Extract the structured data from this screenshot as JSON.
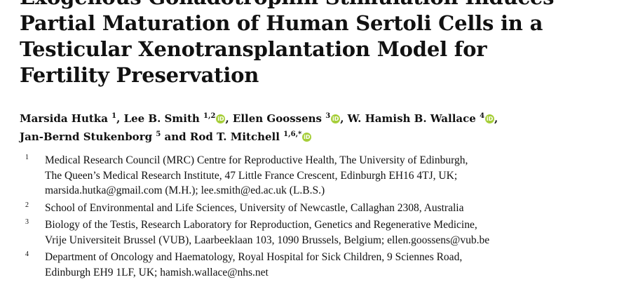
{
  "title_lines": [
    "Exogenous Gonadotrophin Stimulation Induces",
    "Partial Maturation of Human Sertoli Cells in a",
    "Testicular Xenotransplantation Model for",
    "Fertility Preservation"
  ],
  "authors": [
    {
      "name": "Marsida Hutka",
      "sup": "1",
      "orcid": false,
      "sep": ", "
    },
    {
      "name": "Lee B. Smith",
      "sup": "1,2",
      "orcid": true,
      "sep": ", "
    },
    {
      "name": "Ellen Goossens",
      "sup": "3",
      "orcid": true,
      "sep": ", "
    },
    {
      "name": "W. Hamish B. Wallace",
      "sup": "4",
      "orcid": true,
      "sep": ","
    },
    {
      "name": "Jan-Bernd Stukenborg",
      "sup": "5",
      "orcid": false,
      "sep": " and "
    },
    {
      "name": "Rod T. Mitchell",
      "sup": "1,6,*",
      "orcid": true,
      "sep": ""
    }
  ],
  "orcid_glyph": "iD",
  "affiliations": [
    {
      "num": "1",
      "lines": [
        "Medical Research Council (MRC) Centre for Reproductive Health, The University of Edinburgh,",
        "The Queen’s Medical Research Institute, 47 Little France Crescent, Edinburgh EH16 4TJ, UK;",
        "marsida.hutka@gmail.com (M.H.); lee.smith@ed.ac.uk (L.B.S.)"
      ]
    },
    {
      "num": "2",
      "lines": [
        "School of Environmental and Life Sciences, University of Newcastle, Callaghan 2308, Australia"
      ]
    },
    {
      "num": "3",
      "lines": [
        "Biology of the Testis, Research Laboratory for Reproduction, Genetics and Regenerative Medicine,",
        "Vrije Universiteit Brussel (VUB), Laarbeeklaan 103, 1090 Brussels, Belgium; ellen.goossens@vub.be"
      ]
    },
    {
      "num": "4",
      "lines": [
        "Department of Oncology and Haematology, Royal Hospital for Sick Children, 9 Sciennes Road,",
        "Edinburgh EH9 1LF, UK; hamish.wallace@nhs.net"
      ]
    }
  ],
  "colors": {
    "orcid": "#a6ce39",
    "text": "#111111",
    "background": "#ffffff"
  }
}
